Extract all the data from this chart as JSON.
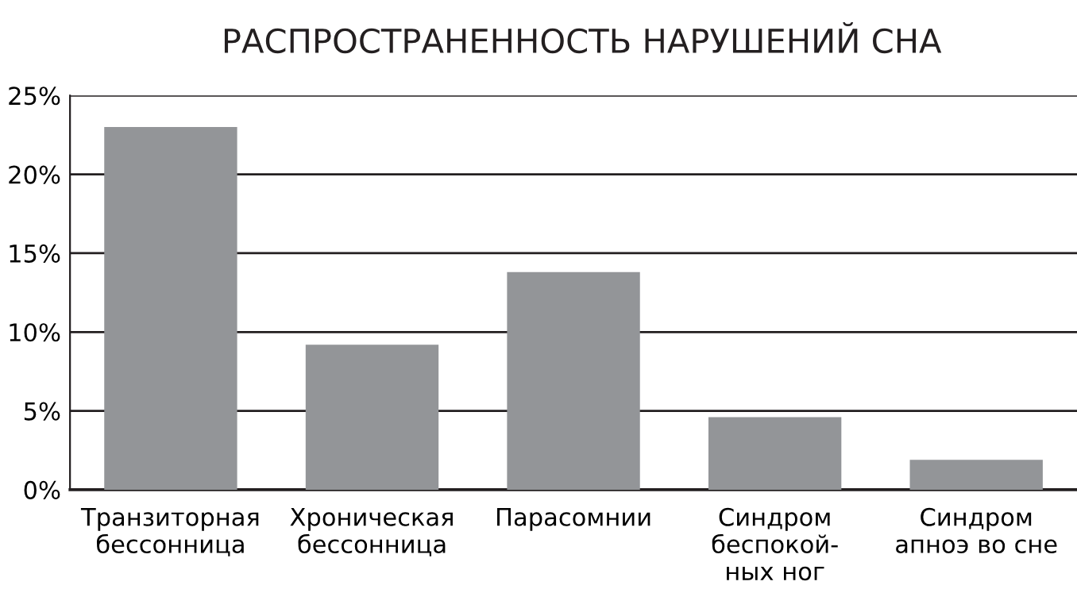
{
  "chart_data": {
    "type": "bar",
    "title": "РАСПРОСТРАНЕННОСТЬ НАРУШЕНИЙ СНА",
    "categories": [
      "Транзиторная\nбессонница",
      "Хроническая\nбессонница",
      "Парасомнии",
      "Синдром\nбеспокой-\nных ног",
      "Синдром\nапноэ во сне"
    ],
    "values": [
      23.0,
      9.2,
      13.8,
      4.6,
      1.9
    ],
    "color": "#939598",
    "ylim": [
      0,
      25
    ],
    "yticks": [
      {
        "value": 0,
        "label": "0%"
      },
      {
        "value": 5,
        "label": "5%"
      },
      {
        "value": 10,
        "label": "10%"
      },
      {
        "value": 15,
        "label": "15%"
      },
      {
        "value": 20,
        "label": "20%"
      },
      {
        "value": 25,
        "label": "25%"
      }
    ],
    "grid": "y",
    "legend": false
  }
}
